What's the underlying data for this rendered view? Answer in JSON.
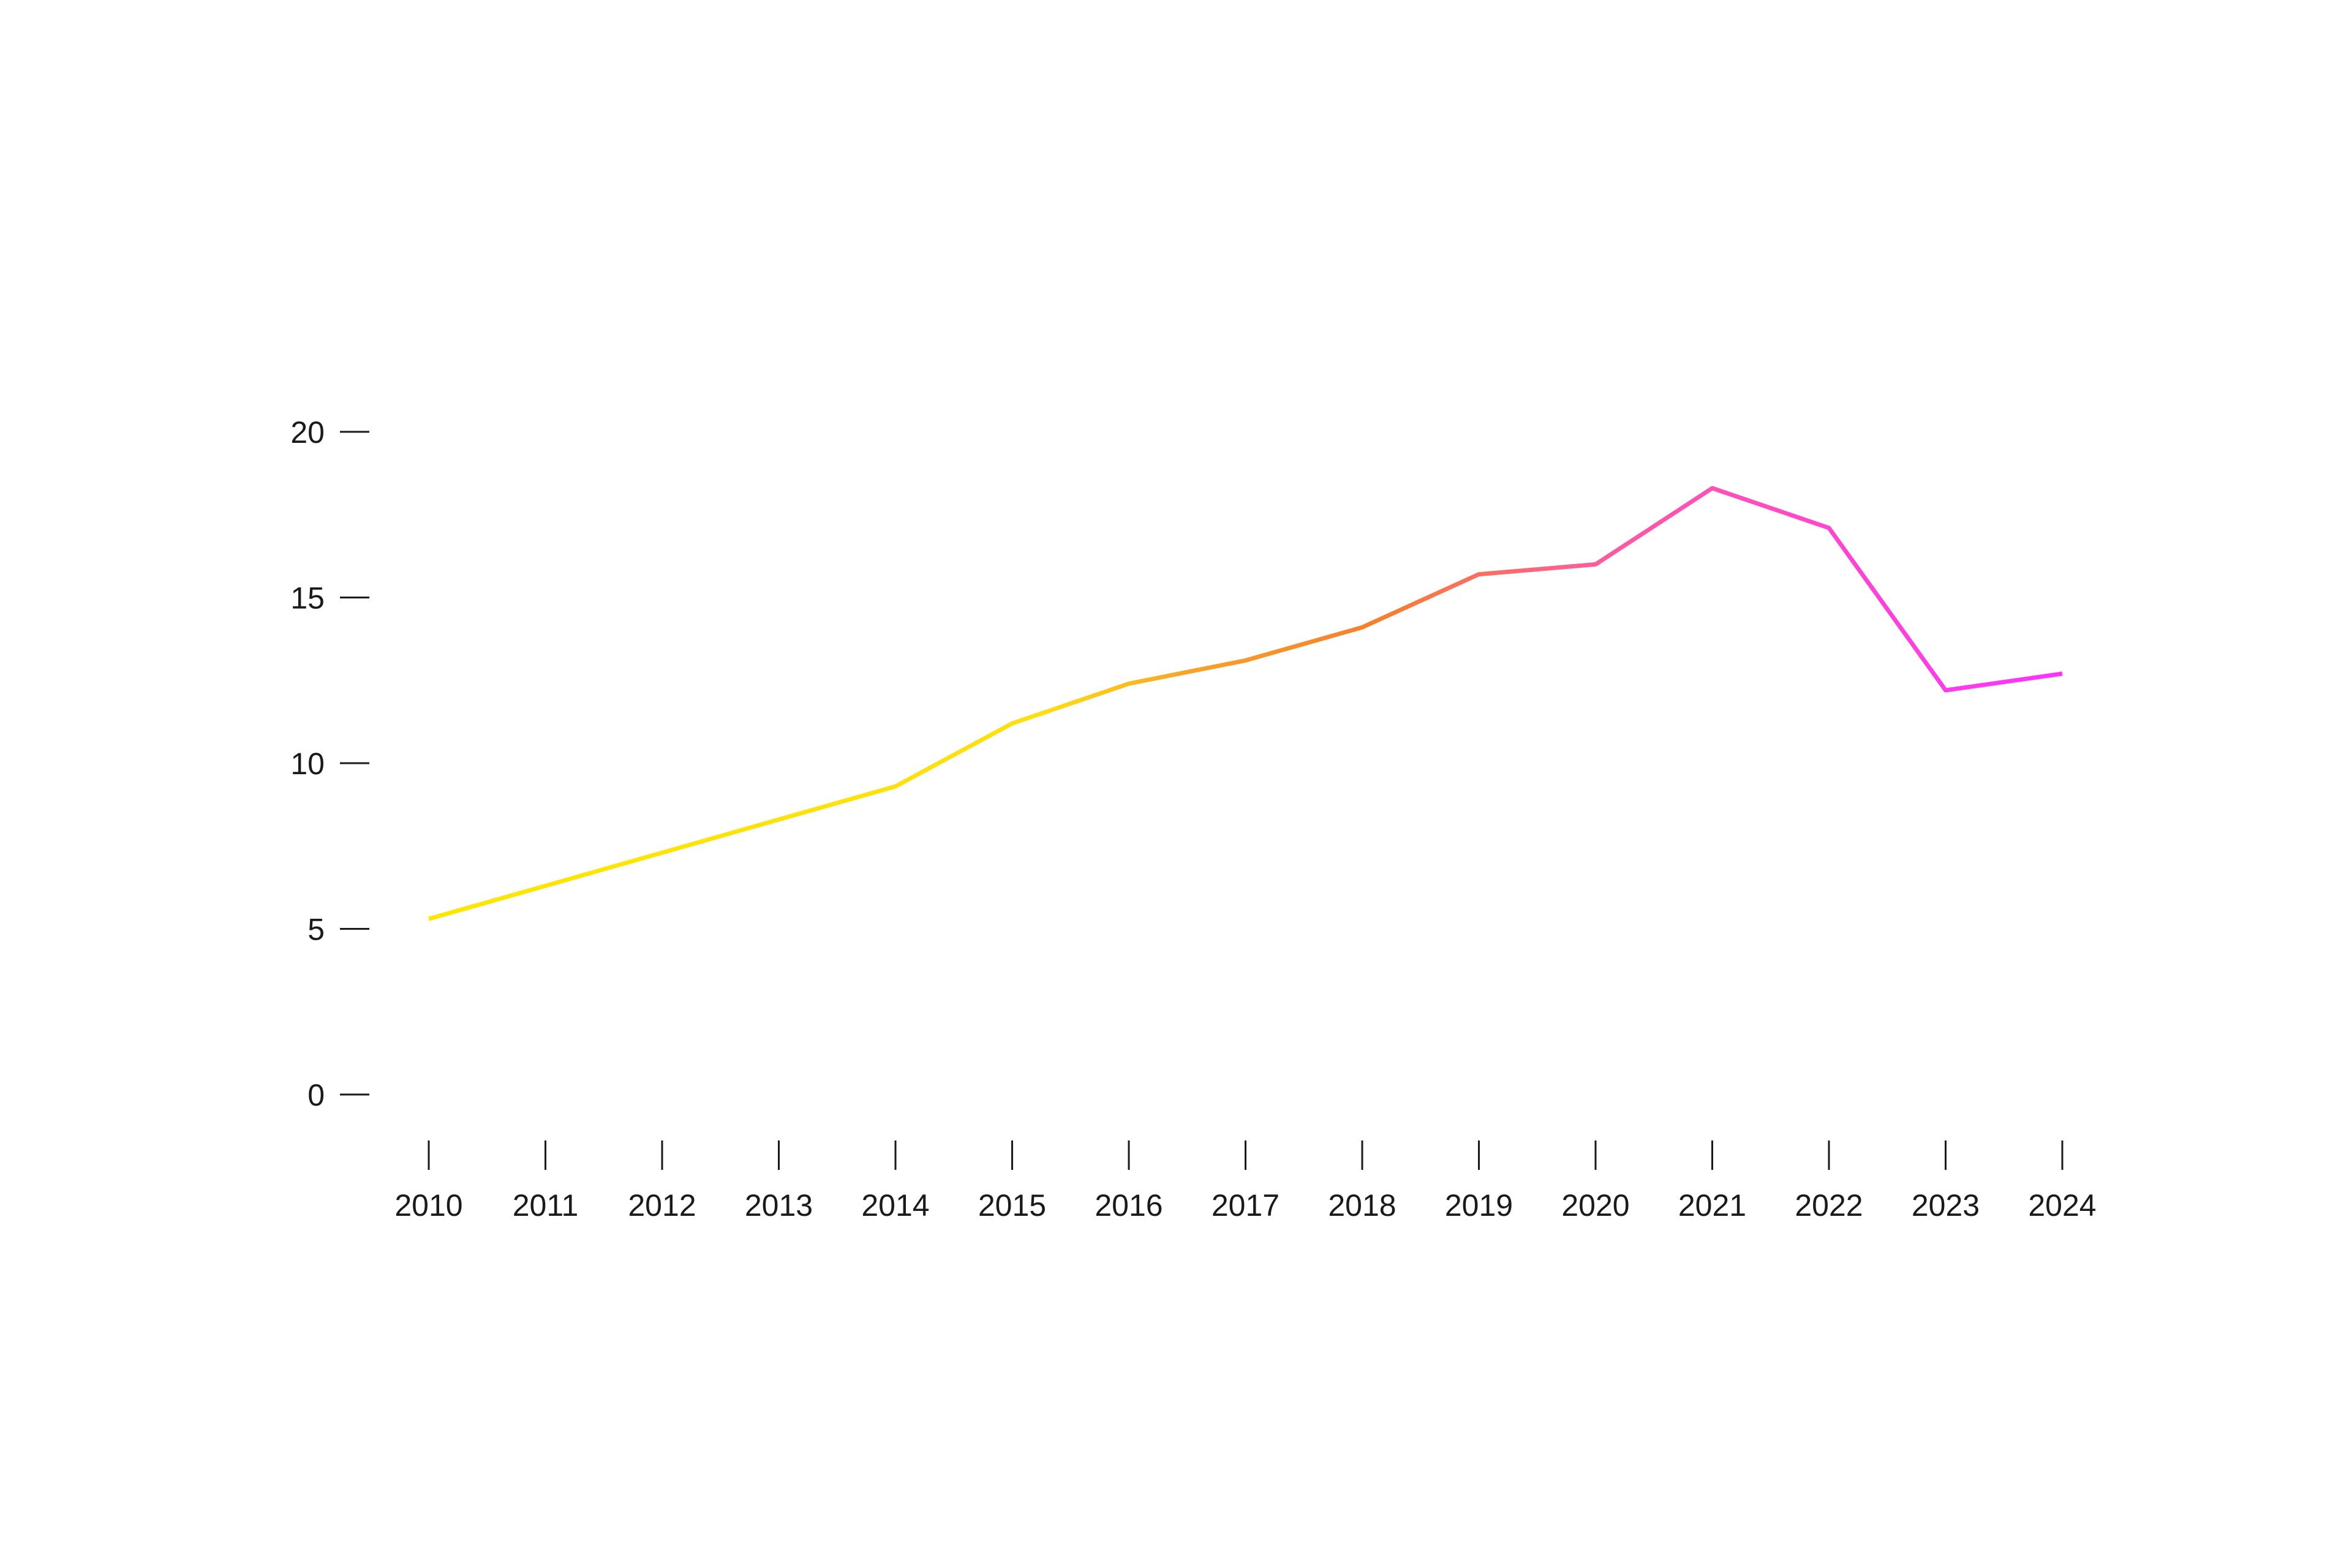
{
  "chart_data": {
    "type": "line",
    "x": [
      "2010",
      "2011",
      "2012",
      "2013",
      "2014",
      "2015",
      "2016",
      "2017",
      "2018",
      "2019",
      "2020",
      "2021",
      "2022",
      "2023",
      "2024"
    ],
    "series": [
      {
        "values": [
          5.3,
          6.3,
          7.3,
          8.3,
          9.3,
          11.2,
          12.4,
          13.1,
          14.1,
          15.7,
          16.0,
          18.3,
          17.1,
          12.2,
          12.7
        ]
      }
    ],
    "y_ticks": [
      0,
      5,
      10,
      15,
      20
    ],
    "ylim": [
      0,
      20
    ],
    "title": "",
    "xlabel": "",
    "ylabel": "",
    "grid": false,
    "line_gradient": [
      "#ffe600",
      "#ffd21a",
      "#f8802a",
      "#ff5aa0",
      "#ff32ff"
    ]
  }
}
